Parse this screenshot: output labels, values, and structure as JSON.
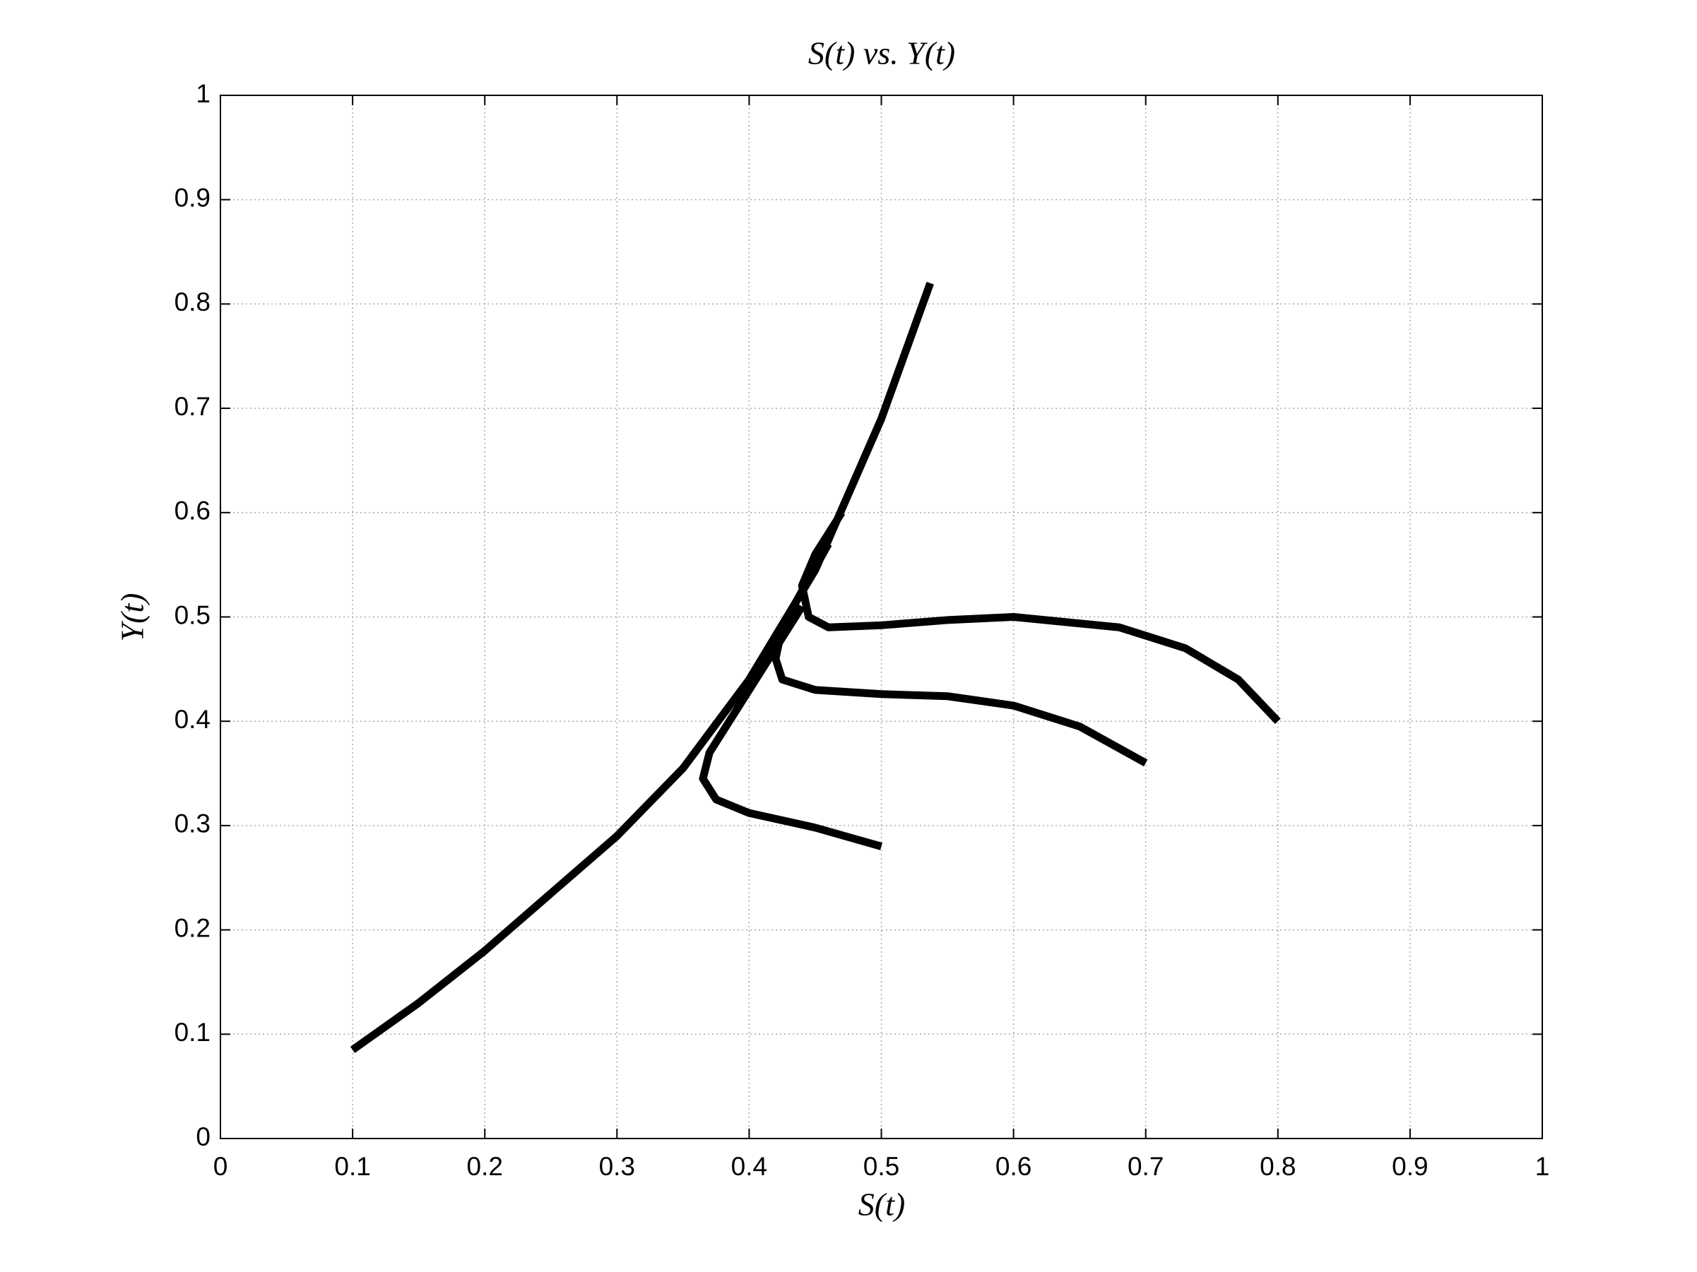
{
  "chart_data": {
    "type": "line",
    "title": "S(t) vs. Y(t)",
    "x_label": "S(t)",
    "y_label": "Y(t)",
    "xlim": [
      0,
      1
    ],
    "ylim": [
      0,
      1
    ],
    "xticks": [
      0,
      0.1,
      0.2,
      0.3,
      0.4,
      0.5,
      0.6,
      0.7,
      0.8,
      0.9,
      1
    ],
    "yticks": [
      0,
      0.1,
      0.2,
      0.3,
      0.4,
      0.5,
      0.6,
      0.7,
      0.8,
      0.9,
      1
    ],
    "grid": true,
    "series": [
      {
        "color": "#000000",
        "x": [
          0.1,
          0.15,
          0.2,
          0.25,
          0.3,
          0.35,
          0.4,
          0.45,
          0.5,
          0.537
        ],
        "values": [
          0.085,
          0.13,
          0.18,
          0.235,
          0.29,
          0.355,
          0.44,
          0.545,
          0.69,
          0.82
        ]
      },
      {
        "color": "#000000",
        "x": [
          0.5,
          0.45,
          0.4,
          0.375,
          0.365,
          0.37,
          0.385,
          0.41,
          0.44
        ],
        "values": [
          0.28,
          0.298,
          0.312,
          0.325,
          0.345,
          0.37,
          0.4,
          0.45,
          0.51
        ]
      },
      {
        "color": "#000000",
        "x": [
          0.7,
          0.65,
          0.6,
          0.55,
          0.5,
          0.45,
          0.425,
          0.42,
          0.425,
          0.44,
          0.46
        ],
        "values": [
          0.36,
          0.395,
          0.415,
          0.424,
          0.426,
          0.43,
          0.44,
          0.46,
          0.49,
          0.525,
          0.57
        ]
      },
      {
        "color": "#000000",
        "x": [
          0.8,
          0.77,
          0.73,
          0.68,
          0.6,
          0.55,
          0.5,
          0.46,
          0.445,
          0.44,
          0.45,
          0.47
        ],
        "values": [
          0.4,
          0.44,
          0.47,
          0.49,
          0.5,
          0.497,
          0.492,
          0.49,
          0.5,
          0.53,
          0.56,
          0.6
        ]
      }
    ]
  }
}
